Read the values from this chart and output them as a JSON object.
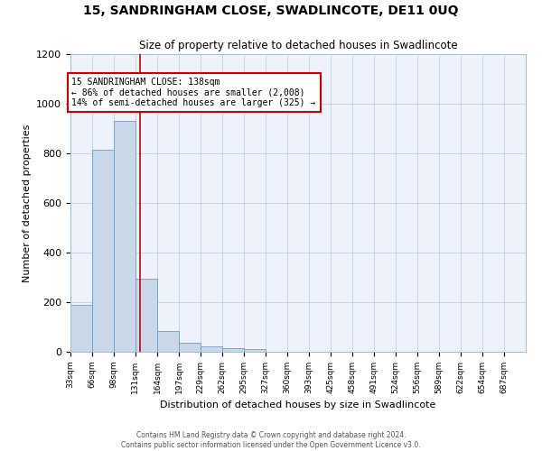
{
  "title": "15, SANDRINGHAM CLOSE, SWADLINCOTE, DE11 0UQ",
  "subtitle": "Size of property relative to detached houses in Swadlincote",
  "xlabel": "Distribution of detached houses by size in Swadlincote",
  "ylabel": "Number of detached properties",
  "bar_color": "#c8d8e8",
  "bar_edge_color": "#7799bb",
  "background_color": "#eef2fa",
  "grid_color": "#b0bfd0",
  "annotation_line_color": "#cc0000",
  "annotation_box_color": "#cc0000",
  "annotation_text": "15 SANDRINGHAM CLOSE: 138sqm\n← 86% of detached houses are smaller (2,008)\n14% of semi-detached houses are larger (325) →",
  "property_size": 138,
  "bin_edges": [
    33,
    66,
    98,
    131,
    164,
    197,
    229,
    262,
    295,
    327,
    360,
    393,
    425,
    458,
    491,
    524,
    556,
    589,
    622,
    654,
    687,
    720
  ],
  "bin_labels": [
    "33sqm",
    "66sqm",
    "98sqm",
    "131sqm",
    "164sqm",
    "197sqm",
    "229sqm",
    "262sqm",
    "295sqm",
    "327sqm",
    "360sqm",
    "393sqm",
    "425sqm",
    "458sqm",
    "491sqm",
    "524sqm",
    "556sqm",
    "589sqm",
    "622sqm",
    "654sqm",
    "687sqm"
  ],
  "bar_heights": [
    190,
    815,
    930,
    295,
    85,
    38,
    22,
    15,
    10,
    0,
    0,
    0,
    0,
    0,
    0,
    0,
    0,
    0,
    0,
    0,
    0
  ],
  "ylim": [
    0,
    1200
  ],
  "yticks": [
    0,
    200,
    400,
    600,
    800,
    1000,
    1200
  ],
  "footer_line1": "Contains HM Land Registry data © Crown copyright and database right 2024.",
  "footer_line2": "Contains public sector information licensed under the Open Government Licence v3.0."
}
